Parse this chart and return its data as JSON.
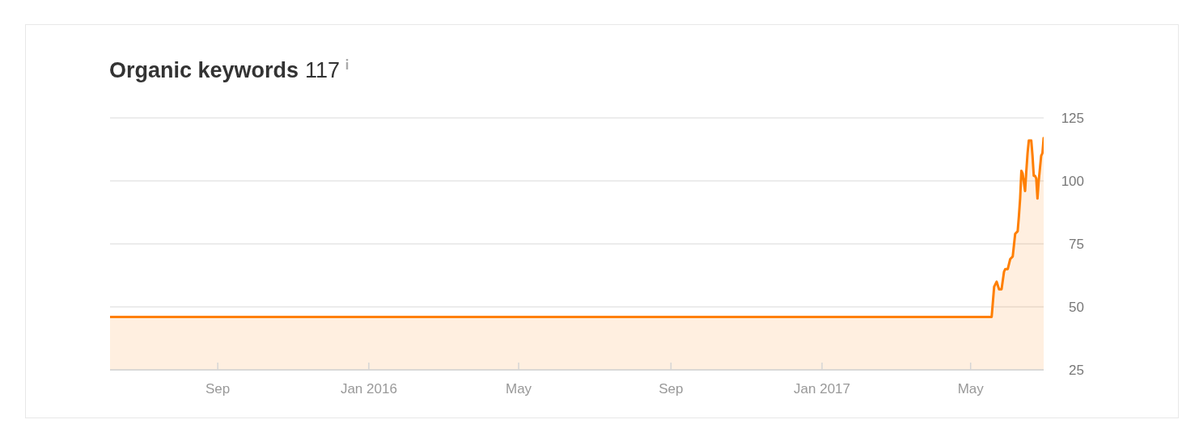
{
  "chart_data": {
    "type": "area",
    "title": "Organic keywords",
    "subtitle": "117",
    "x": [
      "2015-06-06",
      "2017-05-18",
      "2017-05-20",
      "2017-05-22",
      "2017-05-24",
      "2017-05-26",
      "2017-05-28",
      "2017-05-29",
      "2017-05-31",
      "2017-06-02",
      "2017-06-04",
      "2017-06-06",
      "2017-06-08",
      "2017-06-09",
      "2017-06-10",
      "2017-06-11",
      "2017-06-12",
      "2017-06-14",
      "2017-06-15",
      "2017-06-16",
      "2017-06-17",
      "2017-06-19",
      "2017-06-20",
      "2017-06-21",
      "2017-06-22",
      "2017-06-23",
      "2017-06-24",
      "2017-06-25",
      "2017-06-27",
      "2017-06-28",
      "2017-06-29"
    ],
    "values": [
      46,
      46,
      58,
      60,
      57,
      57,
      64,
      65,
      65,
      69,
      70,
      79,
      80,
      86,
      93,
      104,
      103,
      96,
      104,
      111,
      116,
      116,
      110,
      102,
      102,
      101,
      93,
      100,
      110,
      111,
      117
    ],
    "color": "#ff7f00",
    "xlim": [
      "2015-06-06",
      "2017-06-29"
    ],
    "xticks": [
      {
        "value": "2015-09-01",
        "label": "Sep"
      },
      {
        "value": "2016-01-01",
        "label": "Jan 2016"
      },
      {
        "value": "2016-05-01",
        "label": "May"
      },
      {
        "value": "2016-09-01",
        "label": "Sep"
      },
      {
        "value": "2017-01-01",
        "label": "Jan 2017"
      },
      {
        "value": "2017-05-01",
        "label": "May"
      }
    ],
    "ylim": [
      25,
      125
    ],
    "yticks": [
      25,
      50,
      75,
      100,
      125
    ],
    "grid": "y"
  }
}
